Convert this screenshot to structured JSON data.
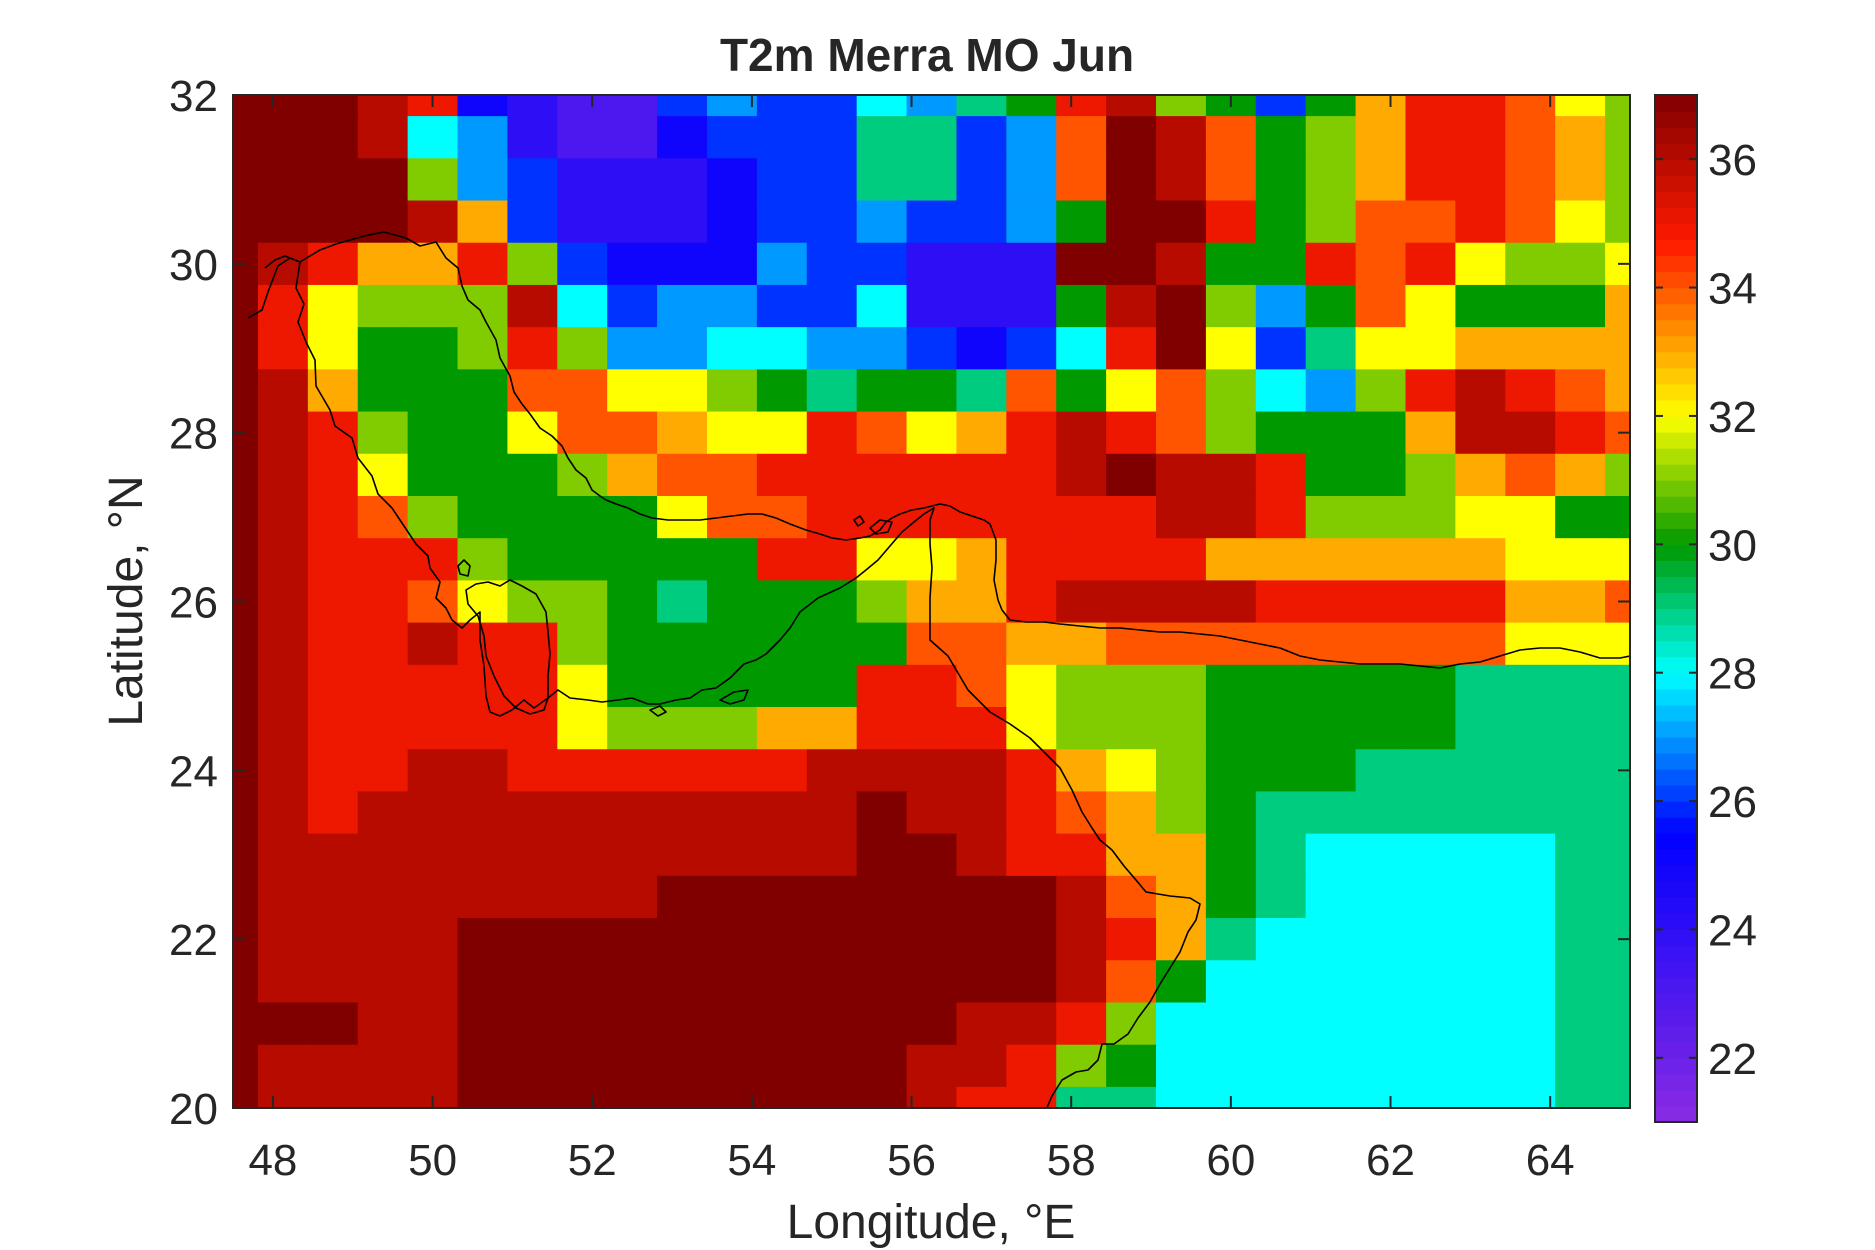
{
  "chart_data": {
    "type": "heatmap",
    "title": "T2m Merra MO Jun",
    "xlabel": "Longitude, °E",
    "ylabel": "Latitude, °N",
    "xlim": [
      47.5,
      65
    ],
    "ylim": [
      20,
      32
    ],
    "xticks": [
      48,
      50,
      52,
      54,
      56,
      58,
      60,
      62,
      64
    ],
    "yticks": [
      20,
      22,
      24,
      26,
      28,
      30,
      32
    ],
    "colorbar": {
      "clim": [
        21,
        37
      ],
      "ticks": [
        22,
        24,
        26,
        28,
        30,
        32,
        34,
        36
      ],
      "colormap": "jet-like: purple 21 → blue 25.5 → cyan 28 → green 30 → yellow 32 → red 34.7 → dark red 37",
      "colors": [
        "#8a2be2",
        "#0000ff",
        "#00ffff",
        "#009900",
        "#ffff00",
        "#ff1a00",
        "#800000"
      ]
    },
    "grid": false,
    "grid_resolution": {
      "dlat": 0.5,
      "dlon": 0.625
    },
    "lat_centers": [
      32.0,
      31.5,
      31.0,
      30.5,
      30.0,
      29.5,
      29.0,
      28.5,
      28.0,
      27.5,
      27.0,
      26.5,
      26.0,
      25.5,
      25.0,
      24.5,
      24.0,
      23.5,
      23.0,
      22.5,
      22.0,
      21.5,
      21.0,
      20.5,
      20.0
    ],
    "lon_centers": [
      47.5,
      48.125,
      48.75,
      49.375,
      50.0,
      50.625,
      51.25,
      51.875,
      52.5,
      53.125,
      53.75,
      54.375,
      55.0,
      55.625,
      56.25,
      56.875,
      57.5,
      58.125,
      58.75,
      59.375,
      60.0,
      60.625,
      61.25,
      61.875,
      62.5,
      63.125,
      63.75,
      64.375,
      65.0
    ],
    "values_degC": [
      [
        37,
        37,
        37,
        36,
        35,
        25,
        24,
        23,
        23,
        26,
        27,
        26,
        26,
        28,
        27,
        29,
        30,
        35,
        36,
        31,
        30,
        26,
        30,
        33,
        35,
        35,
        34,
        32,
        31
      ],
      [
        37,
        37,
        37,
        36,
        28,
        27,
        24,
        23,
        23,
        25,
        26,
        26,
        26,
        29,
        29,
        26,
        27,
        34,
        37,
        36,
        34,
        30,
        31,
        33,
        35,
        35,
        34,
        33,
        31
      ],
      [
        37,
        37,
        37,
        37,
        31,
        27,
        26,
        24,
        24,
        24,
        25,
        26,
        26,
        29,
        29,
        26,
        27,
        34,
        37,
        36,
        34,
        30,
        31,
        33,
        35,
        35,
        34,
        33,
        31
      ],
      [
        37,
        37,
        37,
        37,
        36,
        33,
        26,
        24,
        24,
        24,
        25,
        26,
        26,
        27,
        26,
        26,
        27,
        30,
        37,
        37,
        35,
        30,
        31,
        34,
        34,
        35,
        34,
        32,
        31
      ],
      [
        37,
        36,
        35,
        33,
        33,
        35,
        31,
        26,
        25,
        25,
        25,
        27,
        26,
        26,
        24,
        24,
        24,
        37,
        37,
        36,
        30,
        30,
        35,
        34,
        35,
        32,
        31,
        31,
        32
      ],
      [
        37,
        35,
        32,
        31,
        31,
        31,
        36,
        28,
        26,
        27,
        27,
        26,
        26,
        28,
        24,
        24,
        24,
        30,
        36,
        37,
        31,
        27,
        30,
        34,
        32,
        30,
        30,
        30,
        33
      ],
      [
        37,
        35,
        32,
        30,
        30,
        31,
        35,
        31,
        27,
        27,
        28,
        28,
        27,
        27,
        26,
        25,
        26,
        28,
        35,
        37,
        32,
        26,
        29,
        32,
        32,
        33,
        33,
        33,
        33
      ],
      [
        37,
        36,
        33,
        30,
        30,
        30,
        34,
        34,
        32,
        32,
        31,
        30,
        29,
        30,
        30,
        29,
        34,
        30,
        32,
        34,
        31,
        28,
        27,
        31,
        35,
        36,
        35,
        34,
        33
      ],
      [
        37,
        36,
        35,
        31,
        30,
        30,
        32,
        34,
        34,
        33,
        32,
        32,
        35,
        34,
        32,
        33,
        35,
        36,
        35,
        34,
        31,
        30,
        30,
        30,
        33,
        36,
        36,
        35,
        34
      ],
      [
        37,
        36,
        35,
        32,
        30,
        30,
        30,
        31,
        33,
        34,
        34,
        35,
        35,
        35,
        35,
        35,
        35,
        36,
        37,
        36,
        36,
        35,
        30,
        30,
        31,
        33,
        34,
        33,
        31
      ],
      [
        37,
        36,
        35,
        34,
        31,
        30,
        30,
        30,
        30,
        32,
        34,
        34,
        35,
        35,
        35,
        35,
        35,
        35,
        35,
        36,
        36,
        35,
        31,
        31,
        31,
        32,
        32,
        30,
        30
      ],
      [
        37,
        36,
        35,
        35,
        35,
        31,
        30,
        30,
        30,
        30,
        30,
        35,
        35,
        32,
        32,
        33,
        35,
        35,
        35,
        35,
        33,
        33,
        33,
        33,
        33,
        33,
        32,
        32,
        32
      ],
      [
        37,
        36,
        35,
        35,
        34,
        32,
        31,
        31,
        30,
        29,
        30,
        30,
        30,
        31,
        33,
        33,
        35,
        36,
        36,
        36,
        36,
        35,
        35,
        35,
        35,
        35,
        33,
        33,
        34
      ],
      [
        37,
        36,
        35,
        35,
        36,
        35,
        35,
        31,
        30,
        30,
        30,
        30,
        30,
        30,
        34,
        34,
        33,
        33,
        34,
        34,
        34,
        34,
        34,
        34,
        34,
        34,
        32,
        32,
        32
      ],
      [
        37,
        36,
        35,
        35,
        35,
        35,
        35,
        32,
        30,
        30,
        30,
        30,
        30,
        35,
        35,
        34,
        32,
        31,
        31,
        31,
        30,
        30,
        30,
        30,
        30,
        29,
        29,
        29,
        29
      ],
      [
        37,
        36,
        35,
        35,
        35,
        35,
        35,
        32,
        31,
        31,
        31,
        33,
        33,
        35,
        35,
        35,
        32,
        31,
        31,
        31,
        30,
        30,
        30,
        30,
        30,
        29,
        29,
        29,
        29
      ],
      [
        37,
        36,
        35,
        35,
        36,
        36,
        35,
        35,
        35,
        35,
        35,
        35,
        36,
        36,
        36,
        36,
        35,
        33,
        32,
        31,
        30,
        30,
        30,
        29,
        29,
        29,
        29,
        29,
        29
      ],
      [
        37,
        36,
        35,
        36,
        36,
        36,
        36,
        36,
        36,
        36,
        36,
        36,
        36,
        37,
        36,
        36,
        35,
        34,
        33,
        31,
        30,
        29,
        29,
        29,
        29,
        29,
        29,
        29,
        29
      ],
      [
        37,
        36,
        36,
        36,
        36,
        36,
        36,
        36,
        36,
        36,
        36,
        36,
        36,
        37,
        37,
        36,
        35,
        35,
        33,
        33,
        30,
        29,
        28,
        28,
        28,
        28,
        28,
        29,
        29
      ],
      [
        37,
        36,
        36,
        36,
        36,
        36,
        36,
        36,
        36,
        37,
        37,
        37,
        37,
        37,
        37,
        37,
        37,
        36,
        34,
        33,
        30,
        29,
        28,
        28,
        28,
        28,
        28,
        29,
        29
      ],
      [
        37,
        36,
        36,
        36,
        36,
        37,
        37,
        37,
        37,
        37,
        37,
        37,
        37,
        37,
        37,
        37,
        37,
        36,
        35,
        33,
        29,
        28,
        28,
        28,
        28,
        28,
        28,
        29,
        29
      ],
      [
        37,
        36,
        36,
        36,
        36,
        37,
        37,
        37,
        37,
        37,
        37,
        37,
        37,
        37,
        37,
        37,
        37,
        36,
        34,
        30,
        28,
        28,
        28,
        28,
        28,
        28,
        28,
        29,
        29
      ],
      [
        37,
        37,
        37,
        36,
        36,
        37,
        37,
        37,
        37,
        37,
        37,
        37,
        37,
        37,
        37,
        36,
        36,
        35,
        31,
        28,
        28,
        28,
        28,
        28,
        28,
        28,
        28,
        29,
        29
      ],
      [
        37,
        36,
        36,
        36,
        36,
        37,
        37,
        37,
        37,
        37,
        37,
        37,
        37,
        37,
        36,
        36,
        35,
        31,
        30,
        28,
        28,
        28,
        28,
        28,
        28,
        28,
        28,
        29,
        29
      ],
      [
        37,
        36,
        36,
        36,
        36,
        37,
        37,
        37,
        37,
        37,
        37,
        37,
        37,
        37,
        36,
        35,
        35,
        29,
        29,
        28,
        28,
        28,
        28,
        28,
        28,
        28,
        28,
        29,
        29
      ]
    ]
  }
}
